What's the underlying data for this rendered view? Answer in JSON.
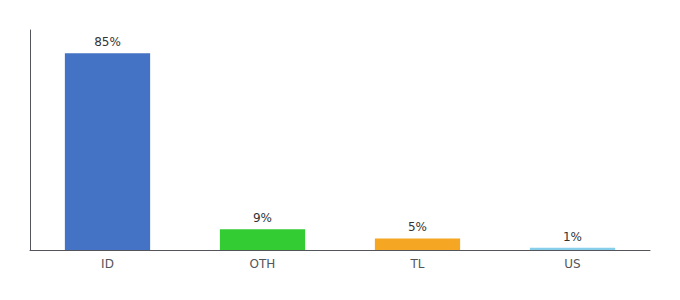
{
  "chart_data": {
    "type": "bar",
    "categories": [
      "ID",
      "OTH",
      "TL",
      "US"
    ],
    "values": [
      85,
      9,
      5,
      1
    ],
    "value_labels": [
      "85%",
      "9%",
      "5%",
      "1%"
    ],
    "colors": [
      "#4472c4",
      "#33cc33",
      "#f5a623",
      "#87ceeb"
    ],
    "ylim": [
      0,
      95
    ],
    "data_labels": true,
    "tick_labels": "x",
    "grid": false
  }
}
